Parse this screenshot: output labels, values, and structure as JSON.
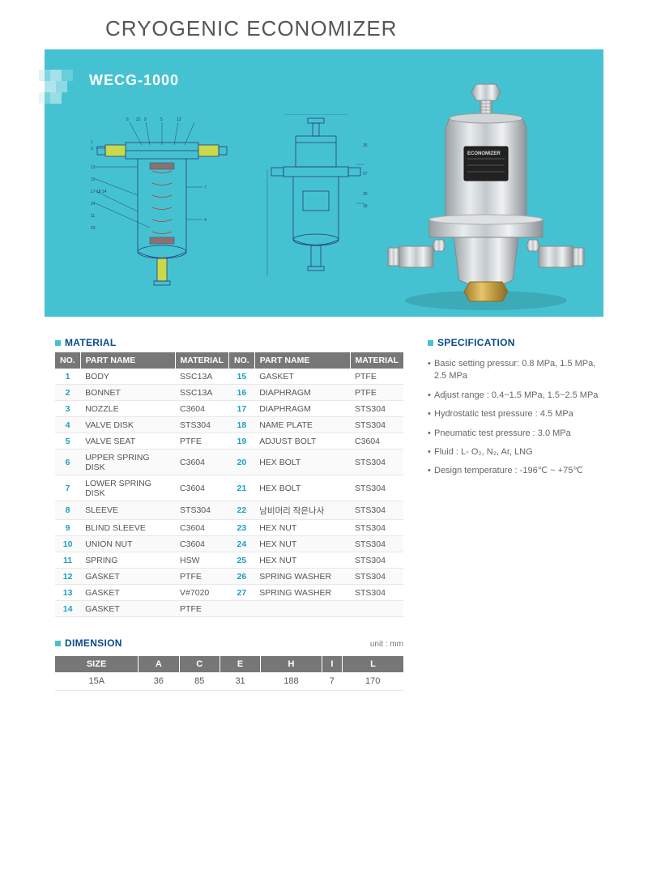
{
  "page_title": "CRYOGENIC ECONOMIZER",
  "model": "WECG-1000",
  "sections": {
    "material_label": "MATERIAL",
    "dimension_label": "DIMENSION",
    "spec_label": "SPECIFICATION"
  },
  "material_table": {
    "headers": [
      "NO.",
      "PART NAME",
      "MATERIAL",
      "NO.",
      "PART NAME",
      "MATERIAL"
    ],
    "rows": [
      [
        "1",
        "BODY",
        "SSC13A",
        "15",
        "GASKET",
        "PTFE"
      ],
      [
        "2",
        "BONNET",
        "SSC13A",
        "16",
        "DIAPHRAGM",
        "PTFE"
      ],
      [
        "3",
        "NOZZLE",
        "C3604",
        "17",
        "DIAPHRAGM",
        "STS304"
      ],
      [
        "4",
        "VALVE DISK",
        "STS304",
        "18",
        "NAME PLATE",
        "STS304"
      ],
      [
        "5",
        "VALVE SEAT",
        "PTFE",
        "19",
        "ADJUST BOLT",
        "C3604"
      ],
      [
        "6",
        "UPPER SPRING DISK",
        "C3604",
        "20",
        "HEX BOLT",
        "STS304"
      ],
      [
        "7",
        "LOWER SPRING DISK",
        "C3604",
        "21",
        "HEX BOLT",
        "STS304"
      ],
      [
        "8",
        "SLEEVE",
        "STS304",
        "22",
        "남비머리 작은나사",
        "STS304"
      ],
      [
        "9",
        "BLIND SLEEVE",
        "C3604",
        "23",
        "HEX NUT",
        "STS304"
      ],
      [
        "10",
        "UNION NUT",
        "C3604",
        "24",
        "HEX NUT",
        "STS304"
      ],
      [
        "11",
        "SPRING",
        "HSW",
        "25",
        "HEX NUT",
        "STS304"
      ],
      [
        "12",
        "GASKET",
        "PTFE",
        "26",
        "SPRING WASHER",
        "STS304"
      ],
      [
        "13",
        "GASKET",
        "V#7020",
        "27",
        "SPRING WASHER",
        "STS304"
      ],
      [
        "14",
        "GASKET",
        "PTFE",
        "",
        "",
        ""
      ]
    ]
  },
  "dimension_table": {
    "unit_label": "unit : mm",
    "headers": [
      "SIZE",
      "A",
      "C",
      "E",
      "H",
      "I",
      "L"
    ],
    "row": [
      "15A",
      "36",
      "85",
      "31",
      "188",
      "7",
      "170"
    ]
  },
  "specifications": [
    "Basic setting pressur: 0.8 MPa, 1.5 MPa,  2.5 MPa",
    "Adjust range : 0.4~1.5 MPa, 1.5~2.5 MPa",
    "Hydrostatic test pressure : 4.5 MPa",
    "Pneumatic test pressure : 3.0 MPa",
    "Fluid : L- O₂, N₂, Ar, LNG",
    "Design temperature : -196℃ ~ +75℃"
  ],
  "colors": {
    "hero_bg": "#45c2d1",
    "accent_sq": "#45c2d1",
    "head_text": "#0a4a8a",
    "table_header_bg": "#777777",
    "no_color": "#1aa0c8"
  }
}
